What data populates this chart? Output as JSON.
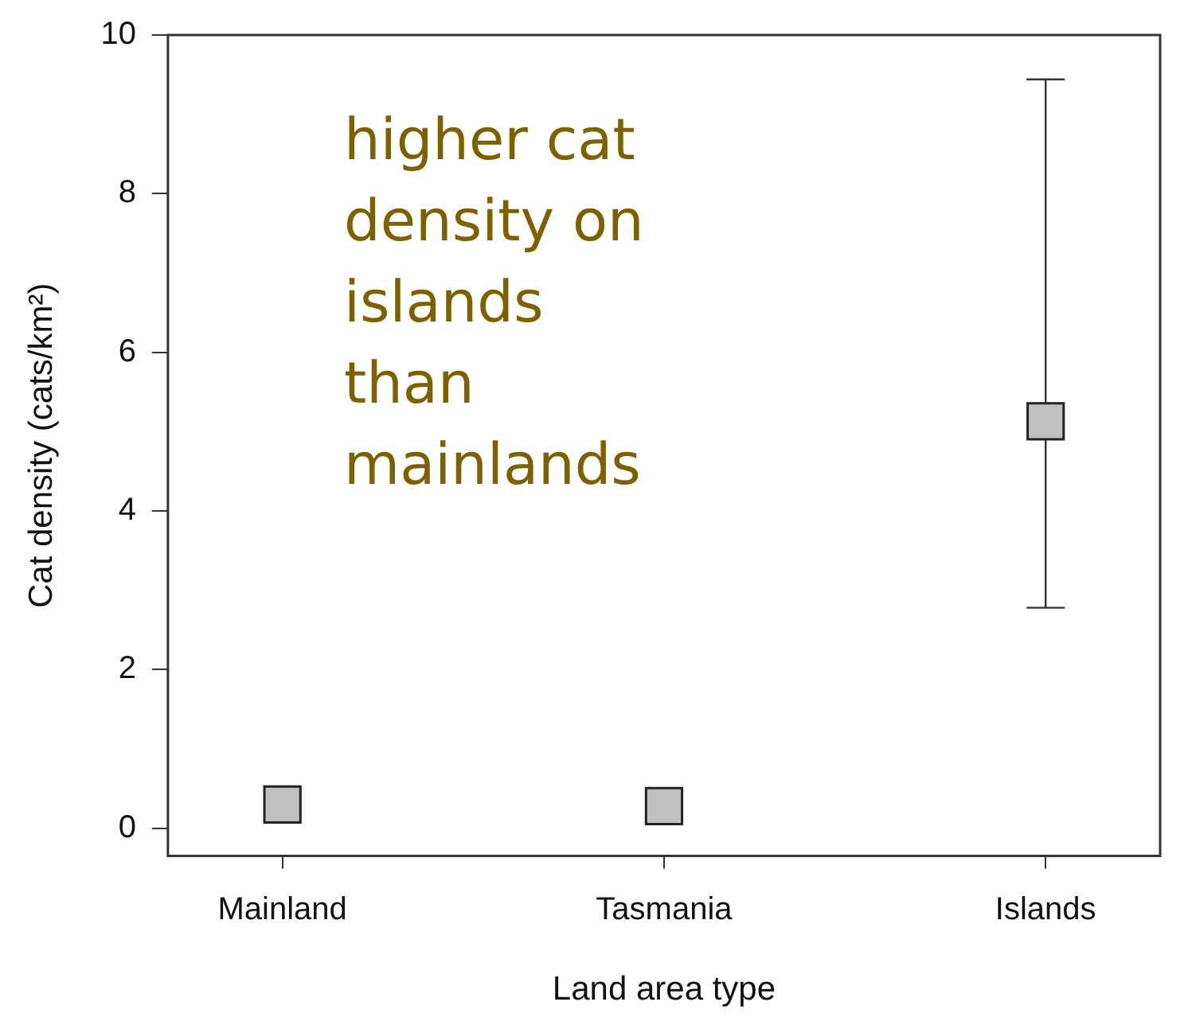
{
  "chart_data": {
    "type": "scatter",
    "xlabel": "Land area type",
    "ylabel": "Cat density (cats/km²)",
    "categories": [
      "Mainland",
      "Tasmania",
      "Islands"
    ],
    "series": [
      {
        "color": "#c0c0c0",
        "values": [
          0.3,
          0.28,
          5.13
        ],
        "errors": [
          null,
          null,
          [
            2.78,
            9.44
          ]
        ]
      }
    ],
    "ylim": [
      -0.35,
      10
    ],
    "yticks": [
      0,
      2,
      4,
      6,
      8,
      10
    ],
    "grid": false,
    "legend": false,
    "marker": "square",
    "annotations": [
      "higher cat\ndensity on\nislands\nthan\nmainlands"
    ]
  }
}
